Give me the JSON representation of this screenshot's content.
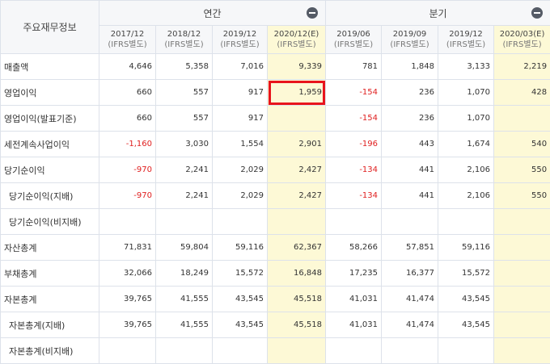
{
  "table": {
    "corner_label": "주요재무정보",
    "groups": {
      "annual": "연간",
      "quarterly": "분기"
    },
    "periods": [
      {
        "label": "2017/12",
        "sub": "(IFRS별도)",
        "estimate": false
      },
      {
        "label": "2018/12",
        "sub": "(IFRS별도)",
        "estimate": false
      },
      {
        "label": "2019/12",
        "sub": "(IFRS별도)",
        "estimate": false
      },
      {
        "label": "2020/12(E)",
        "sub": "(IFRS별도)",
        "estimate": true
      },
      {
        "label": "2019/06",
        "sub": "(IFRS별도)",
        "estimate": false
      },
      {
        "label": "2019/09",
        "sub": "(IFRS별도)",
        "estimate": false
      },
      {
        "label": "2019/12",
        "sub": "(IFRS별도)",
        "estimate": false
      },
      {
        "label": "2020/03(E)",
        "sub": "(IFRS별도)",
        "estimate": true
      }
    ],
    "rows": [
      {
        "label": "매출액",
        "indent": false,
        "values": [
          "4,646",
          "5,358",
          "7,016",
          "9,339",
          "781",
          "1,848",
          "3,133",
          "2,219"
        ]
      },
      {
        "label": "영업이익",
        "indent": false,
        "values": [
          "660",
          "557",
          "917",
          "1,959",
          "-154",
          "236",
          "1,070",
          "428"
        ]
      },
      {
        "label": "영업이익(발표기준)",
        "indent": false,
        "values": [
          "660",
          "557",
          "917",
          "",
          "-154",
          "236",
          "1,070",
          ""
        ]
      },
      {
        "label": "세전계속사업이익",
        "indent": false,
        "values": [
          "-1,160",
          "3,030",
          "1,554",
          "2,901",
          "-196",
          "443",
          "1,674",
          "540"
        ]
      },
      {
        "label": "당기순이익",
        "indent": false,
        "values": [
          "-970",
          "2,241",
          "2,029",
          "2,427",
          "-134",
          "441",
          "2,106",
          "550"
        ]
      },
      {
        "label": "당기순이익(지배)",
        "indent": true,
        "values": [
          "-970",
          "2,241",
          "2,029",
          "2,427",
          "-134",
          "441",
          "2,106",
          "550"
        ]
      },
      {
        "label": "당기순이익(비지배)",
        "indent": true,
        "values": [
          "",
          "",
          "",
          "",
          "",
          "",
          "",
          ""
        ]
      },
      {
        "label": "자산총계",
        "indent": false,
        "values": [
          "71,831",
          "59,804",
          "59,116",
          "62,367",
          "58,266",
          "57,851",
          "59,116",
          ""
        ]
      },
      {
        "label": "부채총계",
        "indent": false,
        "values": [
          "32,066",
          "18,249",
          "15,572",
          "16,848",
          "17,235",
          "16,377",
          "15,572",
          ""
        ]
      },
      {
        "label": "자본총계",
        "indent": false,
        "values": [
          "39,765",
          "41,555",
          "43,545",
          "45,518",
          "41,031",
          "41,474",
          "43,545",
          ""
        ]
      },
      {
        "label": "자본총계(지배)",
        "indent": true,
        "values": [
          "39,765",
          "41,555",
          "43,545",
          "45,518",
          "41,031",
          "41,474",
          "43,545",
          ""
        ]
      },
      {
        "label": "자본총계(비지배)",
        "indent": true,
        "values": [
          "",
          "",
          "",
          "",
          "",
          "",
          "",
          ""
        ]
      }
    ],
    "highlighted_cell": {
      "row": "영업이익",
      "period": "2020/12(E)"
    },
    "colors": {
      "negative": "#e02020",
      "estimate_bg": "#fdf9d6",
      "highlight_border": "#e8141c",
      "header_bg": "#f6f7f9"
    }
  }
}
